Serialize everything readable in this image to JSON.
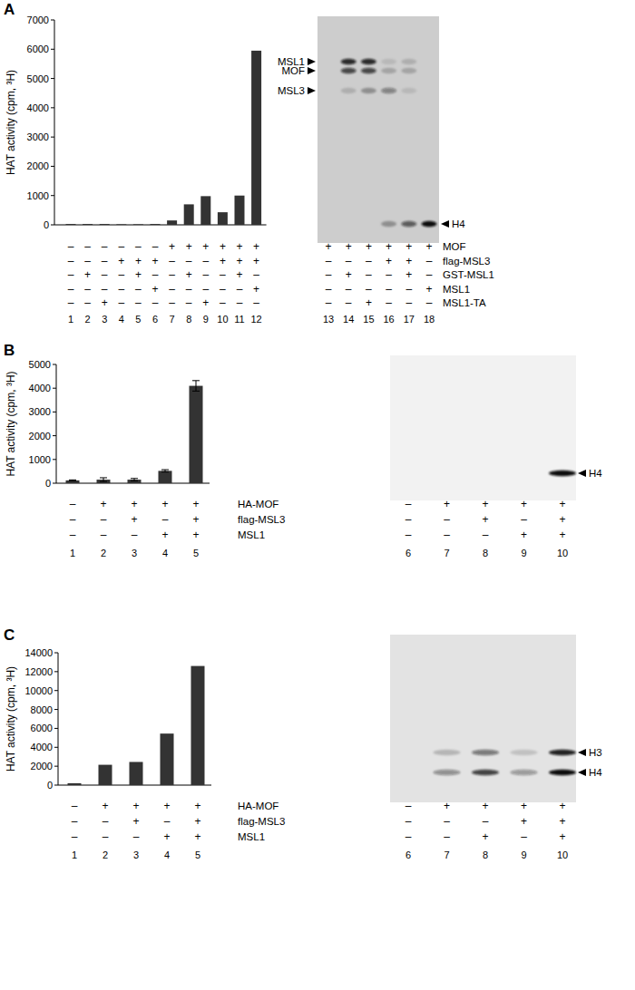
{
  "chart_data": [
    {
      "type": "bar",
      "y_label": "HAT activity (cpm, ³H)",
      "categories": [
        "1",
        "2",
        "3",
        "4",
        "5",
        "6",
        "7",
        "8",
        "9",
        "10",
        "11",
        "12"
      ],
      "values": [
        30,
        30,
        30,
        20,
        20,
        30,
        150,
        700,
        980,
        430,
        1000,
        5950
      ],
      "color": "#333333",
      "ylim": [
        0,
        7000
      ],
      "yticks": [
        0,
        1000,
        2000,
        3000,
        4000,
        5000,
        6000,
        7000
      ],
      "grid": false
    },
    {
      "type": "bar",
      "y_label": "HAT activity (cpm, ³H)",
      "categories": [
        "1",
        "2",
        "3",
        "4",
        "5"
      ],
      "values": [
        120,
        150,
        150,
        520,
        4100
      ],
      "errors": [
        20,
        80,
        50,
        50,
        220
      ],
      "color": "#333333",
      "ylim": [
        0,
        5000
      ],
      "yticks": [
        0,
        1000,
        2000,
        3000,
        4000,
        5000
      ],
      "grid": false
    },
    {
      "type": "bar",
      "y_label": "HAT activity (cpm, ³H)",
      "categories": [
        "1",
        "2",
        "3",
        "4",
        "5"
      ],
      "values": [
        200,
        2150,
        2450,
        5450,
        12600
      ],
      "color": "#333333",
      "ylim": [
        0,
        14000
      ],
      "yticks": [
        0,
        2000,
        4000,
        6000,
        8000,
        10000,
        12000,
        14000
      ],
      "grid": false
    }
  ],
  "panels": [
    {
      "label": "A",
      "rows": [
        {
          "label": "MOF",
          "chart": [
            "–",
            "–",
            "–",
            "–",
            "–",
            "–",
            "+",
            "+",
            "+",
            "+",
            "+",
            "+"
          ],
          "gel": [
            "+",
            "+",
            "+",
            "+",
            "+",
            "+"
          ]
        },
        {
          "label": "flag-MSL3",
          "chart": [
            "–",
            "–",
            "–",
            "+",
            "+",
            "+",
            "–",
            "–",
            "–",
            "+",
            "+",
            "+"
          ],
          "gel": [
            "–",
            "–",
            "–",
            "+",
            "+",
            "–"
          ]
        },
        {
          "label": "GST-MSL1",
          "chart": [
            "–",
            "+",
            "–",
            "–",
            "+",
            "–",
            "–",
            "+",
            "–",
            "–",
            "+",
            "–"
          ],
          "gel": [
            "–",
            "+",
            "–",
            "–",
            "+",
            "–"
          ]
        },
        {
          "label": "MSL1",
          "chart": [
            "–",
            "–",
            "–",
            "–",
            "–",
            "+",
            "–",
            "–",
            "–",
            "–",
            "–",
            "+"
          ],
          "gel": [
            "–",
            "–",
            "–",
            "–",
            "–",
            "+"
          ]
        },
        {
          "label": "MSL1-TA",
          "chart": [
            "–",
            "–",
            "+",
            "–",
            "–",
            "–",
            "–",
            "–",
            "+",
            "–",
            "–",
            "–"
          ],
          "gel": [
            "–",
            "–",
            "+",
            "–",
            "–",
            "–"
          ]
        }
      ],
      "gel": {
        "lanes": [
          "13",
          "14",
          "15",
          "16",
          "17",
          "18"
        ],
        "bands": [
          {
            "label": "MSL1",
            "intensity": [
              0,
              0.85,
              0.85,
              0.1,
              0.15,
              0
            ]
          },
          {
            "label": "MOF",
            "intensity": [
              0,
              0.7,
              0.7,
              0.2,
              0.2,
              0
            ]
          },
          {
            "label": "MSL3",
            "intensity": [
              0,
              0.15,
              0.3,
              0.4,
              0.1,
              0
            ]
          },
          {
            "label": "H4",
            "intensity": [
              0,
              0,
              0,
              0.3,
              0.6,
              1
            ]
          }
        ]
      }
    },
    {
      "label": "B",
      "rows": [
        {
          "label": "HA-MOF",
          "chart": [
            "–",
            "+",
            "+",
            "+",
            "+"
          ],
          "gel": [
            "–",
            "+",
            "+",
            "+",
            "+"
          ]
        },
        {
          "label": "flag-MSL3",
          "chart": [
            "–",
            "–",
            "+",
            "–",
            "+"
          ],
          "gel": [
            "–",
            "–",
            "+",
            "–",
            "+"
          ]
        },
        {
          "label": "MSL1",
          "chart": [
            "–",
            "–",
            "–",
            "+",
            "+"
          ],
          "gel": [
            "–",
            "–",
            "–",
            "+",
            "+"
          ]
        }
      ],
      "gel": {
        "lanes": [
          "6",
          "7",
          "8",
          "9",
          "10"
        ],
        "bands": [
          {
            "label": "H4",
            "intensity": [
              0,
              0,
              0,
              0,
              1
            ]
          }
        ]
      }
    },
    {
      "label": "C",
      "rows": [
        {
          "label": "HA-MOF",
          "chart": [
            "–",
            "+",
            "+",
            "+",
            "+"
          ],
          "gel": [
            "–",
            "+",
            "+",
            "+",
            "+"
          ]
        },
        {
          "label": "flag-MSL3",
          "chart": [
            "–",
            "–",
            "+",
            "–",
            "+"
          ],
          "gel": [
            "–",
            "–",
            "–",
            "+",
            "+"
          ]
        },
        {
          "label": "MSL1",
          "chart": [
            "–",
            "–",
            "–",
            "+",
            "+"
          ],
          "gel": [
            "–",
            "–",
            "+",
            "–",
            "+"
          ]
        }
      ],
      "gel": {
        "lanes": [
          "6",
          "7",
          "8",
          "9",
          "10"
        ],
        "bands": [
          {
            "label": "H3",
            "intensity": [
              0,
              0.2,
              0.5,
              0.15,
              0.9
            ]
          },
          {
            "label": "H4",
            "intensity": [
              0,
              0.4,
              0.75,
              0.35,
              1
            ]
          }
        ]
      }
    }
  ]
}
